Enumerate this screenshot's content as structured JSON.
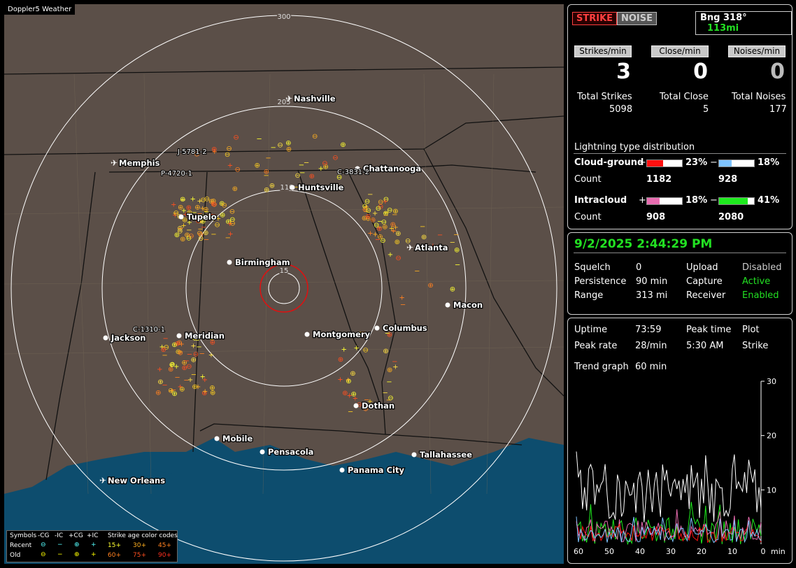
{
  "app": {
    "corner_label": "Doppler5 Weather"
  },
  "map": {
    "ring_labels": [
      "300",
      "205",
      "110",
      "15"
    ],
    "cities": [
      {
        "name": "Nashville",
        "x": 418,
        "y": 135,
        "airport": true
      },
      {
        "name": "Memphis",
        "x": 168,
        "y": 227,
        "airport": true
      },
      {
        "name": "Chattanooga",
        "x": 517,
        "y": 235,
        "airport": false
      },
      {
        "name": "Huntsville",
        "x": 424,
        "y": 262,
        "airport": false
      },
      {
        "name": "Tupelo",
        "x": 265,
        "y": 304,
        "airport": false
      },
      {
        "name": "Atlanta",
        "x": 591,
        "y": 348,
        "airport": true
      },
      {
        "name": "Birmingham",
        "x": 334,
        "y": 369,
        "airport": false
      },
      {
        "name": "Macon",
        "x": 646,
        "y": 430,
        "airport": false
      },
      {
        "name": "Columbus",
        "x": 545,
        "y": 463,
        "airport": false
      },
      {
        "name": "Montgomery",
        "x": 445,
        "y": 472,
        "airport": false
      },
      {
        "name": "Jackson",
        "x": 157,
        "y": 477,
        "airport": false
      },
      {
        "name": "Meridian",
        "x": 262,
        "y": 474,
        "airport": false
      },
      {
        "name": "Dothan",
        "x": 515,
        "y": 574,
        "airport": false
      },
      {
        "name": "Mobile",
        "x": 316,
        "y": 621,
        "airport": false
      },
      {
        "name": "Pensacola",
        "x": 381,
        "y": 640,
        "airport": false
      },
      {
        "name": "Tallahassee",
        "x": 598,
        "y": 644,
        "airport": false
      },
      {
        "name": "Panama City",
        "x": 495,
        "y": 666,
        "airport": false
      },
      {
        "name": "New Orleans",
        "x": 152,
        "y": 681,
        "airport": true
      }
    ],
    "cell_labels": [
      "J-5781-2",
      "P-4720-1",
      "C-3831-2",
      "C-1310-1"
    ],
    "legend": {
      "symbols_title": "Symbols",
      "sym_cols": [
        "-CG",
        "-IC",
        "+CG",
        "+IC"
      ],
      "recent": "Recent",
      "old": "Old",
      "age_title": "Strike age color codes",
      "age_recent": [
        "15+",
        "30+",
        "45+"
      ],
      "age_old": [
        "60+",
        "75+",
        "90+"
      ]
    }
  },
  "status": {
    "strike_btn": "STRIKE",
    "noise_btn": "NOISE",
    "bearing": "Bng 318°",
    "distance": "113mi",
    "rate_headers": [
      "Strikes/min",
      "Close/min",
      "Noises/min"
    ],
    "rate_values": [
      "3",
      "0",
      "0"
    ],
    "total_labels": [
      "Total Strikes",
      "Total Close",
      "Total Noises"
    ],
    "total_values": [
      "5098",
      "5",
      "177"
    ],
    "dist_title": "Lightning type distribution",
    "cg_label": "Cloud-ground",
    "ic_label": "Intracloud",
    "count_label": "Count",
    "plus": "+",
    "minus": "−",
    "cg_pos_pct": "23%",
    "cg_neg_pct": "18%",
    "ic_pos_pct": "18%",
    "ic_neg_pct": "41%",
    "cg_pos_fill": 0.23,
    "cg_neg_fill": 0.18,
    "ic_pos_fill": 0.18,
    "ic_neg_fill": 0.41,
    "cg_pos_count": "1182",
    "cg_neg_count": "928",
    "ic_pos_count": "908",
    "ic_neg_count": "2080",
    "colors": {
      "cg_pos": "#ff1010",
      "cg_neg": "#7fc4ff",
      "ic_pos": "#e86cb0",
      "ic_neg": "#1eea1e"
    }
  },
  "settings": {
    "datetime": "9/2/2025 2:44:29 PM",
    "rows": [
      {
        "k": "Squelch",
        "v": "0",
        "k2": "Upload",
        "v2": "Disabled",
        "c2": "#cccccc"
      },
      {
        "k": "Persistence",
        "v": "90 min",
        "k2": "Capture",
        "v2": "Active",
        "c2": "#22e022"
      },
      {
        "k": "Range",
        "v": "313 mi",
        "k2": "Receiver",
        "v2": "Enabled",
        "c2": "#22e022"
      }
    ]
  },
  "stats": {
    "uptime_label": "Uptime",
    "uptime": "73:59",
    "peaktime_label": "Peak time",
    "peaktime": "5:30 AM",
    "plot_label": "Plot",
    "plot": "Strike",
    "peakrate_label": "Peak rate",
    "peakrate": "28/min",
    "trend_label": "Trend graph",
    "trend": "60 min",
    "y_ticks": [
      "30",
      "20",
      "10"
    ],
    "x_ticks": [
      "60",
      "50",
      "40",
      "30",
      "20",
      "10",
      "0"
    ],
    "x_unit": "min"
  }
}
